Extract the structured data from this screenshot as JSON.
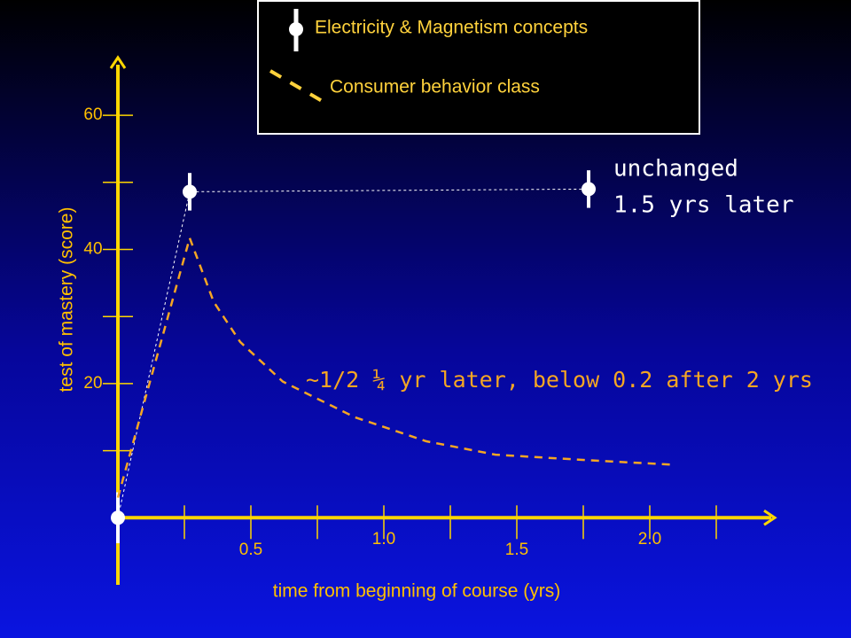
{
  "chart_data": {
    "type": "line",
    "xlabel": "time  from beginning of course (yrs)",
    "ylabel": "test of mastery (score)",
    "xlim": [
      0,
      2.47
    ],
    "ylim": [
      -10,
      68.6
    ],
    "xticks": [
      0.5,
      {
        "value": 1,
        "label": "1.0"
      },
      1.5,
      {
        "value": 2,
        "label": "2.0"
      }
    ],
    "xminorticks": [
      0.25,
      0.75,
      1.25,
      1.75,
      2.25
    ],
    "yticks": [
      20,
      40,
      60
    ],
    "yminorticks": [
      10,
      30,
      50
    ],
    "series": [
      {
        "name": "Electricity & Magnetism concepts",
        "color": "#ffffff",
        "x": [
          0,
          0.27,
          1.77
        ],
        "values": [
          0,
          48.6,
          49
        ],
        "errors": [
          3.8,
          2.8,
          2.8
        ]
      },
      {
        "name": "Consumer behavior class",
        "color": "#f5a623",
        "x": [
          0,
          0.27,
          0.36,
          0.46,
          0.62,
          0.89,
          1.16,
          1.42,
          1.76,
          2.09
        ],
        "values": [
          3,
          41.7,
          32.2,
          26.2,
          20.3,
          15,
          11.4,
          9.4,
          8.6,
          7.9
        ]
      }
    ],
    "annotations": [
      "unchanged",
      "1.5 yrs later",
      "~1/2  ¼ yr later, below 0.2 after 2 yrs"
    ]
  }
}
